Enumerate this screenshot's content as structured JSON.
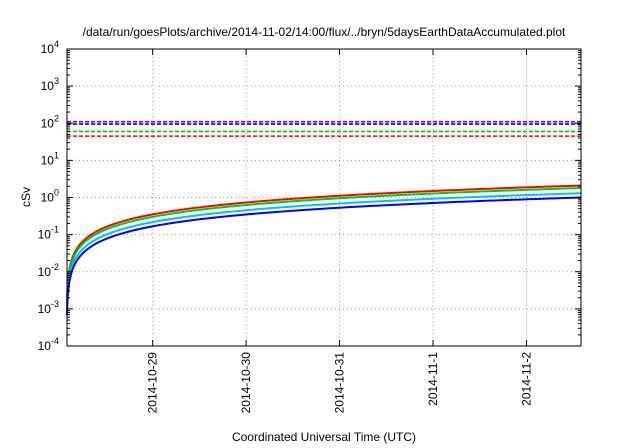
{
  "chart_data": {
    "type": "line",
    "title": "/data/run/goesPlots/archive/2014-11-02/14:00/flux/../bryn/5daysEarthDataAccumulated.plot",
    "xlabel": "Coordinated Universal Time (UTC)",
    "ylabel": "cSv",
    "yscale": "log",
    "ylim": [
      0.0001,
      10000
    ],
    "xlim": [
      "2014-10-28 02:00",
      "2014-11-02 14:00"
    ],
    "grid": true,
    "y_ticks": [
      {
        "base": "10",
        "exp": "-4",
        "value": 0.0001
      },
      {
        "base": "10",
        "exp": "-3",
        "value": 0.001
      },
      {
        "base": "10",
        "exp": "-2",
        "value": 0.01
      },
      {
        "base": "10",
        "exp": "-1",
        "value": 0.1
      },
      {
        "base": "10",
        "exp": "0",
        "value": 1
      },
      {
        "base": "10",
        "exp": "1",
        "value": 10
      },
      {
        "base": "10",
        "exp": "2",
        "value": 100
      },
      {
        "base": "10",
        "exp": "3",
        "value": 1000
      },
      {
        "base": "10",
        "exp": "4",
        "value": 10000
      }
    ],
    "x_ticks": [
      {
        "label": "2014-10-29",
        "value": "2014-10-29 00:00"
      },
      {
        "label": "2014-10-30",
        "value": "2014-10-30 00:00"
      },
      {
        "label": "2014-10-31",
        "value": "2014-10-31 00:00"
      },
      {
        "label": "2014-11-1",
        "value": "2014-11-01 00:00"
      },
      {
        "label": "2014-11-2",
        "value": "2014-11-02 00:00"
      }
    ],
    "reference_lines": [
      {
        "color": "#7f00ff",
        "value": 110
      },
      {
        "color": "#0000ff",
        "value": 95
      },
      {
        "color": "#00cc00",
        "value": 60
      },
      {
        "color": "#ff0000",
        "value": 45
      }
    ],
    "series": [
      {
        "color": "#ff0000",
        "start": "2014-10-28 02:00",
        "end": "2014-11-02 14:00",
        "start_value": 0.0015,
        "end_value": 2.1
      },
      {
        "color": "#00cc00",
        "start": "2014-10-28 02:00",
        "end": "2014-11-02 14:00",
        "start_value": 0.0013,
        "end_value": 1.8
      },
      {
        "color": "#00bfff",
        "start": "2014-10-28 02:00",
        "end": "2014-11-02 14:00",
        "start_value": 0.0011,
        "end_value": 1.3
      },
      {
        "color": "#0000ff",
        "start": "2014-10-28 02:00",
        "end": "2014-11-02 14:00",
        "start_value": 0.0007,
        "end_value": 1.0
      }
    ]
  }
}
